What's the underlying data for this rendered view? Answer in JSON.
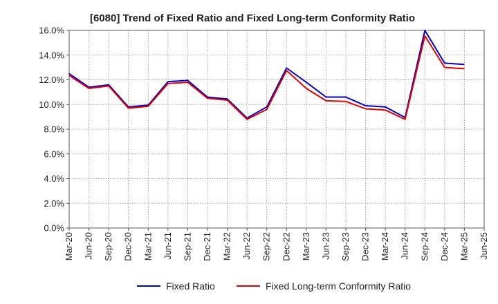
{
  "chart_data": {
    "type": "line",
    "title": "[6080]  Trend of Fixed Ratio and Fixed Long-term Conformity Ratio",
    "xlabel": "",
    "ylabel": "",
    "ylim": [
      0,
      16
    ],
    "y_ticks": [
      "0.0%",
      "2.0%",
      "4.0%",
      "6.0%",
      "8.0%",
      "10.0%",
      "12.0%",
      "14.0%",
      "16.0%"
    ],
    "categories": [
      "Mar-20",
      "Jun-20",
      "Sep-20",
      "Dec-20",
      "Mar-21",
      "Jun-21",
      "Sep-21",
      "Dec-21",
      "Mar-22",
      "Jun-22",
      "Sep-22",
      "Dec-22",
      "Mar-23",
      "Jun-23",
      "Sep-23",
      "Dec-23",
      "Mar-24",
      "Jun-24",
      "Sep-24",
      "Dec-24",
      "Mar-25",
      "Jun-25"
    ],
    "grid": true,
    "legend_position": "bottom",
    "series": [
      {
        "name": "Fixed Ratio",
        "color": "#0000cc",
        "values": [
          12.5,
          11.4,
          11.6,
          9.8,
          9.95,
          11.85,
          11.95,
          10.6,
          10.45,
          8.9,
          9.8,
          12.95,
          11.8,
          10.6,
          10.6,
          9.9,
          9.8,
          8.95,
          16.0,
          13.35,
          13.25,
          null
        ]
      },
      {
        "name": "Fixed Long-term Conformity Ratio",
        "color": "#e60000",
        "values": [
          12.35,
          11.3,
          11.5,
          9.7,
          9.85,
          11.7,
          11.8,
          10.5,
          10.35,
          8.8,
          9.6,
          12.75,
          11.3,
          10.3,
          10.25,
          9.65,
          9.55,
          8.8,
          15.55,
          13.0,
          12.9,
          null
        ]
      }
    ]
  }
}
